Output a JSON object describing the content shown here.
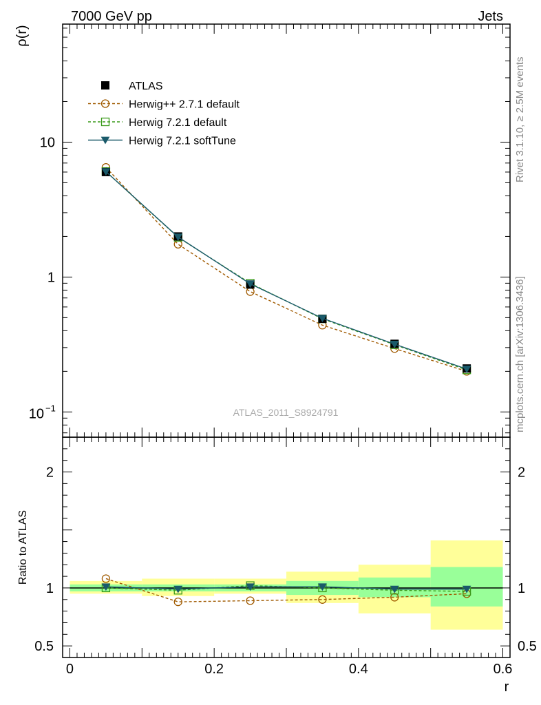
{
  "header": {
    "left_title": "7000 GeV pp",
    "right_title": "Jets"
  },
  "side": {
    "rivet": "Rivet 3.1.10, ≥ 2.5M events",
    "mcplots": "mcplots.cern.ch [arXiv:1306.3436]"
  },
  "watermark": "ATLAS_2011_S8924791",
  "colors": {
    "atlas": "#000000",
    "herwig_pp": "#a05a00",
    "herwig_default": "#3a9a1a",
    "herwig_soft": "#1a5a6a",
    "band_inner": "#99ff99",
    "band_outer": "#ffff99"
  },
  "chart_data": [
    {
      "type": "line",
      "ylabel": "ρ(r)",
      "yscale": "log",
      "ylim": [
        0.065,
        75
      ],
      "xlim": [
        -0.01,
        0.61
      ],
      "y_ticklabels": [
        "10",
        "1"
      ],
      "y_ticklabel_min": {
        "base": "10",
        "exp": "−1"
      },
      "legend_position": "top-left",
      "x": [
        0.05,
        0.15,
        0.25,
        0.35,
        0.45,
        0.55
      ],
      "series": [
        {
          "name": "ATLAS",
          "key": "atlas",
          "marker": "square-filled",
          "dash": "none",
          "values": [
            6.0,
            2.0,
            0.88,
            0.49,
            0.32,
            0.21
          ]
        },
        {
          "name": "Herwig++ 2.7.1 default",
          "key": "herwig_pp",
          "marker": "circle-open",
          "dash": "dashed",
          "values": [
            6.5,
            1.75,
            0.78,
            0.44,
            0.295,
            0.2
          ]
        },
        {
          "name": "Herwig 7.2.1 default",
          "key": "herwig_default",
          "marker": "square-open",
          "dash": "dashed",
          "values": [
            6.05,
            1.97,
            0.9,
            0.49,
            0.315,
            0.205
          ]
        },
        {
          "name": "Herwig 7.2.1 softTune",
          "key": "herwig_soft",
          "marker": "triangle-down-filled",
          "dash": "none",
          "values": [
            6.05,
            1.98,
            0.89,
            0.495,
            0.318,
            0.208
          ]
        }
      ]
    },
    {
      "type": "line",
      "ylabel": "Ratio to ATLAS",
      "xlabel": "r",
      "ylim": [
        0.4,
        2.3
      ],
      "y_ticklabels": [
        "2",
        "1",
        "0.5"
      ],
      "x_ticklabels": [
        "0",
        "0.2",
        "0.4",
        "0.6"
      ],
      "bins": [
        [
          0.0,
          0.1
        ],
        [
          0.1,
          0.2
        ],
        [
          0.2,
          0.3
        ],
        [
          0.3,
          0.4
        ],
        [
          0.4,
          0.5
        ],
        [
          0.5,
          0.6
        ]
      ],
      "band_inner": [
        [
          0.97,
          1.03
        ],
        [
          0.97,
          1.03
        ],
        [
          0.97,
          1.03
        ],
        [
          0.94,
          1.06
        ],
        [
          0.92,
          1.09
        ],
        [
          0.84,
          1.18
        ]
      ],
      "band_outer": [
        [
          0.95,
          1.06
        ],
        [
          0.93,
          1.08
        ],
        [
          0.95,
          1.08
        ],
        [
          0.87,
          1.14
        ],
        [
          0.78,
          1.2
        ],
        [
          0.64,
          1.41
        ]
      ],
      "x": [
        0.05,
        0.15,
        0.25,
        0.35,
        0.45,
        0.55
      ],
      "series": [
        {
          "key": "herwig_pp",
          "marker": "circle-open",
          "dash": "dashed",
          "values": [
            1.08,
            0.88,
            0.89,
            0.9,
            0.92,
            0.95
          ]
        },
        {
          "key": "herwig_default",
          "marker": "square-open",
          "dash": "dashed",
          "values": [
            1.0,
            0.98,
            1.02,
            1.0,
            0.98,
            0.97
          ]
        },
        {
          "key": "herwig_soft",
          "marker": "triangle-down-filled",
          "dash": "none",
          "values": [
            1.01,
            0.99,
            1.01,
            1.01,
            0.99,
            0.99
          ]
        }
      ]
    }
  ]
}
